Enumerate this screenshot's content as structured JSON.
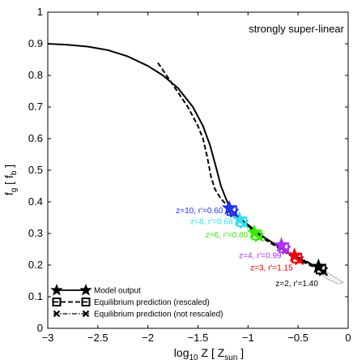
{
  "chart_data": {
    "type": "line",
    "title": "strongly super-linear",
    "xlabel": {
      "prefix": "log",
      "sub": "10",
      "mid": " Z [ Z",
      "sub2": "sun",
      "suffix": " ]"
    },
    "ylabel": {
      "prefix": "f",
      "sub": "g",
      "mid": " [ f",
      "sub2": "b",
      "suffix": " ]"
    },
    "xlim": [
      -3,
      0
    ],
    "ylim": [
      0,
      1
    ],
    "xticks": [
      -3,
      -2.5,
      -2,
      -1.5,
      -1,
      -0.5,
      0
    ],
    "xtick_labels": [
      "−3",
      "−2.5",
      "−2",
      "−1.5",
      "−1",
      "−0.5",
      "0"
    ],
    "yticks": [
      0,
      0.1,
      0.2,
      0.3,
      0.4,
      0.5,
      0.6,
      0.7,
      0.8,
      0.9,
      1
    ],
    "ytick_labels": [
      "0",
      "0.1",
      "0.2",
      "0.3",
      "0.4",
      "0.5",
      "0.6",
      "0.7",
      "0.8",
      "0.9",
      "1"
    ],
    "grid": false,
    "legend_position": "bottom-left",
    "series": [
      {
        "name": "Model output",
        "style": "solid",
        "x": [
          -3.0,
          -2.8,
          -2.6,
          -2.4,
          -2.2,
          -2.0,
          -1.85,
          -1.7,
          -1.55,
          -1.45,
          -1.38,
          -1.32,
          -1.27,
          -1.22,
          -1.18,
          -1.12,
          -1.05,
          -0.95,
          -0.85,
          -0.75,
          -0.65,
          -0.55,
          -0.45,
          -0.35,
          -0.3
        ],
        "y": [
          0.9,
          0.897,
          0.891,
          0.88,
          0.86,
          0.83,
          0.8,
          0.76,
          0.7,
          0.64,
          0.58,
          0.51,
          0.45,
          0.41,
          0.38,
          0.355,
          0.34,
          0.315,
          0.29,
          0.27,
          0.25,
          0.23,
          0.215,
          0.2,
          0.19
        ]
      },
      {
        "name": "Equilibrium prediction (rescaled)",
        "style": "dashed",
        "x": [
          -1.9,
          -1.75,
          -1.6,
          -1.5,
          -1.45,
          -1.42,
          -1.4,
          -1.37,
          -1.33,
          -1.27,
          -1.2,
          -1.15,
          -1.1,
          -1.05,
          -0.95,
          -0.85,
          -0.75,
          -0.65,
          -0.55,
          -0.45,
          -0.35,
          -0.3
        ],
        "y": [
          0.84,
          0.77,
          0.7,
          0.64,
          0.6,
          0.56,
          0.53,
          0.48,
          0.44,
          0.41,
          0.385,
          0.37,
          0.355,
          0.34,
          0.31,
          0.285,
          0.265,
          0.245,
          0.225,
          0.21,
          0.195,
          0.185
        ]
      },
      {
        "name": "Equilibrium prediction (not rescaled)",
        "style": "dashdot",
        "x": [
          -1.2,
          -1.1,
          -1.0,
          -0.9,
          -0.8,
          -0.7,
          -0.6,
          -0.5,
          -0.4,
          -0.3
        ],
        "y": [
          0.37,
          0.345,
          0.32,
          0.298,
          0.278,
          0.26,
          0.243,
          0.226,
          0.21,
          0.192
        ]
      }
    ],
    "redshift_points": [
      {
        "label": "z=2, r'=1.40",
        "x": -0.28,
        "y": 0.19,
        "color": "#000000"
      },
      {
        "label": "z=3, r'=1.15",
        "x": -0.52,
        "y": 0.225,
        "color": "#ee0000"
      },
      {
        "label": "z=4, r'=0.99",
        "x": -0.65,
        "y": 0.258,
        "color": "#b030ff"
      },
      {
        "label": "z=6, r'=0.80",
        "x": -0.92,
        "y": 0.298,
        "color": "#33ee00"
      },
      {
        "label": "z=8, r'=0.68",
        "x": -1.07,
        "y": 0.34,
        "color": "#33ddee"
      },
      {
        "label": "z=10, r'=0.60",
        "x": -1.17,
        "y": 0.375,
        "color": "#2233ee"
      }
    ],
    "shaded_region": {
      "upper": {
        "x": [
          -0.3,
          -0.2,
          -0.1,
          -0.05
        ],
        "y": [
          0.2,
          0.175,
          0.155,
          0.145
        ]
      },
      "lower": {
        "x": [
          -0.3,
          -0.2,
          -0.1,
          -0.05
        ],
        "y": [
          0.18,
          0.155,
          0.14,
          0.145
        ]
      }
    },
    "legend": [
      {
        "label": "Model output",
        "style": "solid",
        "marker": "star"
      },
      {
        "label": "Equilibrium prediction (rescaled)",
        "style": "dashed",
        "marker": "square"
      },
      {
        "label": "Equilibrium prediction (not rescaled)",
        "style": "dashdot",
        "marker": "cross"
      }
    ]
  }
}
